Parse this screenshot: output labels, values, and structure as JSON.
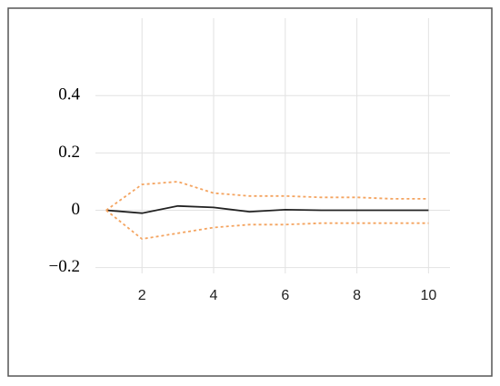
{
  "chart_data": {
    "type": "line",
    "x": [
      1,
      2,
      3,
      4,
      5,
      6,
      7,
      8,
      9,
      10
    ],
    "series": [
      {
        "color": "#222222",
        "style": "solid",
        "values": [
          0,
          -0.01,
          0.015,
          0.01,
          -0.005,
          0.002,
          0,
          0,
          0,
          0
        ]
      },
      {
        "color": "#f4a460",
        "style": "dotted",
        "values": [
          0,
          0.09,
          0.1,
          0.06,
          0.05,
          0.05,
          0.045,
          0.045,
          0.04,
          0.04
        ]
      },
      {
        "color": "#f4a460",
        "style": "dotted",
        "values": [
          0,
          -0.1,
          -0.08,
          -0.06,
          -0.05,
          -0.05,
          -0.045,
          -0.045,
          -0.045,
          -0.045
        ]
      }
    ],
    "xlim": [
      0.7,
      10.6
    ],
    "xticks": [
      2,
      4,
      6,
      8,
      10
    ],
    "ylim": [
      -0.22,
      0.67
    ],
    "yticks": [
      {
        "value": -0.2,
        "label": "−0.2"
      },
      0,
      0.2,
      0.4
    ],
    "grid": true
  }
}
